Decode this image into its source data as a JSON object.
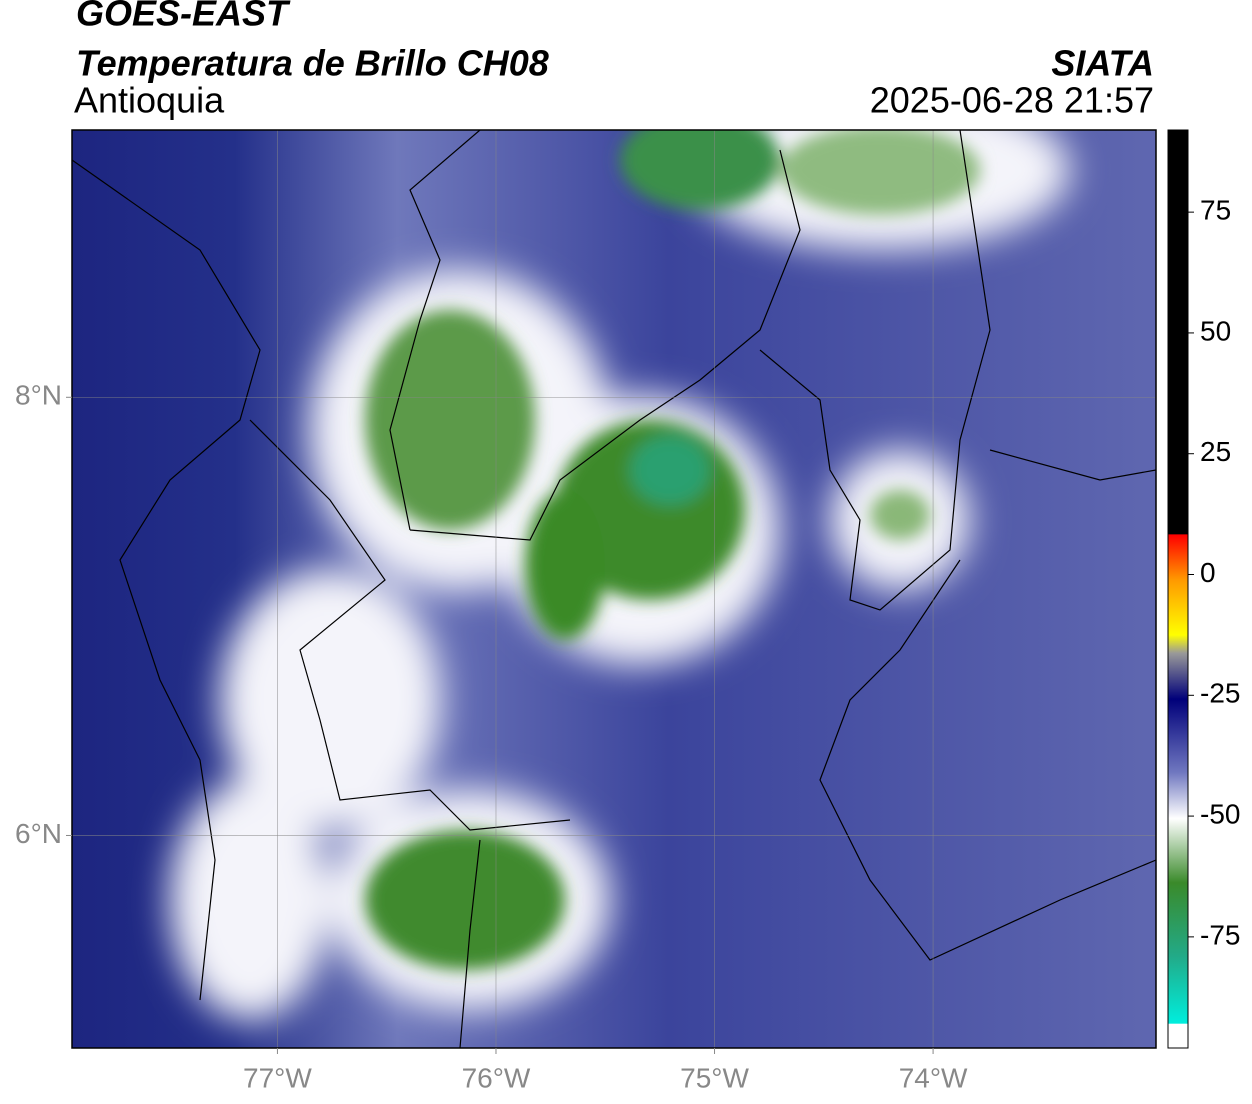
{
  "header": {
    "title": "GOES-EAST",
    "subtitle": "Temperatura de Brillo CH08",
    "region": "Antioquia",
    "source": "SIATA",
    "datetime": "2025-06-28 21:57"
  },
  "map": {
    "xlim": [
      -77.94,
      -72.98
    ],
    "ylim": [
      5.03,
      9.22
    ],
    "xticks": [
      {
        "value": -77,
        "label": "77°W"
      },
      {
        "value": -76,
        "label": "76°W"
      },
      {
        "value": -75,
        "label": "75°W"
      },
      {
        "value": -74,
        "label": "74°W"
      }
    ],
    "yticks": [
      {
        "value": 6,
        "label": "6°N"
      },
      {
        "value": 8,
        "label": "8°N"
      }
    ],
    "grid": true
  },
  "colorbar": {
    "lim": [
      -98,
      92
    ],
    "ticks": [
      75,
      50,
      25,
      0,
      -25,
      -50,
      -75
    ]
  }
}
